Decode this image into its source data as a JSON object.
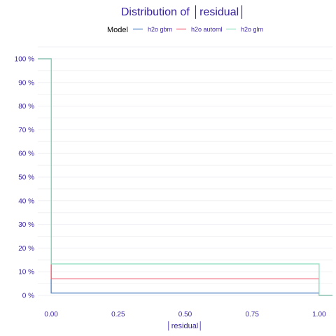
{
  "chart_data": {
    "type": "line",
    "step": true,
    "title": "Distribution of │residual│",
    "xlabel": "│residual│",
    "ylabel": "",
    "legend_title": "Model",
    "legend_position": "top",
    "xlim": [
      -0.05,
      1.05
    ],
    "ylim": [
      0,
      100
    ],
    "x_ticks": [
      "0.00",
      "0.25",
      "0.50",
      "0.75",
      "1.00"
    ],
    "y_ticks": [
      "0 %",
      "10 %",
      "20 %",
      "30 %",
      "40 %",
      "50 %",
      "60 %",
      "70 %",
      "80 %",
      "90 %",
      "100 %"
    ],
    "grid": true,
    "series": [
      {
        "name": "h2o gbm",
        "color": "#4378bf",
        "x": [
          -0.05,
          0.0,
          0.0,
          1.0,
          1.0,
          1.05
        ],
        "y": [
          100,
          100,
          1.0,
          1.0,
          0,
          0
        ]
      },
      {
        "name": "h2o automl",
        "color": "#f05a71",
        "x": [
          -0.05,
          0.0,
          0.0,
          1.0,
          1.0,
          1.05
        ],
        "y": [
          100,
          100,
          7.0,
          7.0,
          0,
          0
        ]
      },
      {
        "name": "h2o glm",
        "color": "#8bdcbe",
        "x": [
          -0.05,
          0.0,
          0.0,
          1.0,
          1.0,
          1.05
        ],
        "y": [
          100,
          100,
          13.3,
          13.3,
          0,
          0
        ]
      }
    ]
  }
}
